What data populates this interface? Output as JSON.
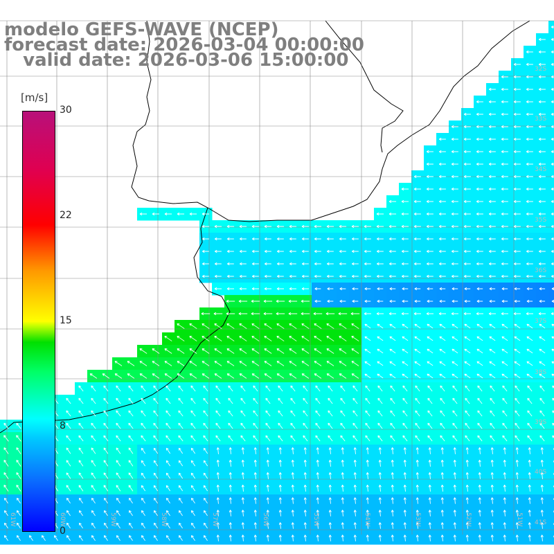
{
  "title": {
    "line1": "modelo GEFS-WAVE (NCEP)",
    "line2": "forecast date: 2026-03-04 00:00:00",
    "line3": "   valid date: 2026-03-06 15:00:00"
  },
  "colorbar": {
    "unit": "[m/s]",
    "min": 0,
    "max": 30,
    "ticks": [
      "30",
      "22",
      "15",
      "8",
      "0"
    ],
    "colors": [
      "#0000ff",
      "#0a6cff",
      "#00c8ff",
      "#00ffff",
      "#00ff66",
      "#00e000",
      "#ffff00",
      "#ff9900",
      "#ff0000",
      "#b8107a"
    ]
  },
  "grid": {
    "lat_labels": [
      "32S",
      "33S",
      "34S",
      "35S",
      "36S",
      "37S",
      "38S",
      "39S",
      "40S",
      "41S"
    ],
    "lon_labels": [
      "61W",
      "60W",
      "59W",
      "58W",
      "57W",
      "56W",
      "55W",
      "54W",
      "53W",
      "52W",
      "51W"
    ]
  },
  "colors": {
    "land": "#ffffff",
    "coast": "#000000",
    "gridline": "#888888",
    "arrow": "#ffffff",
    "title_text": "#7f7f7f"
  }
}
